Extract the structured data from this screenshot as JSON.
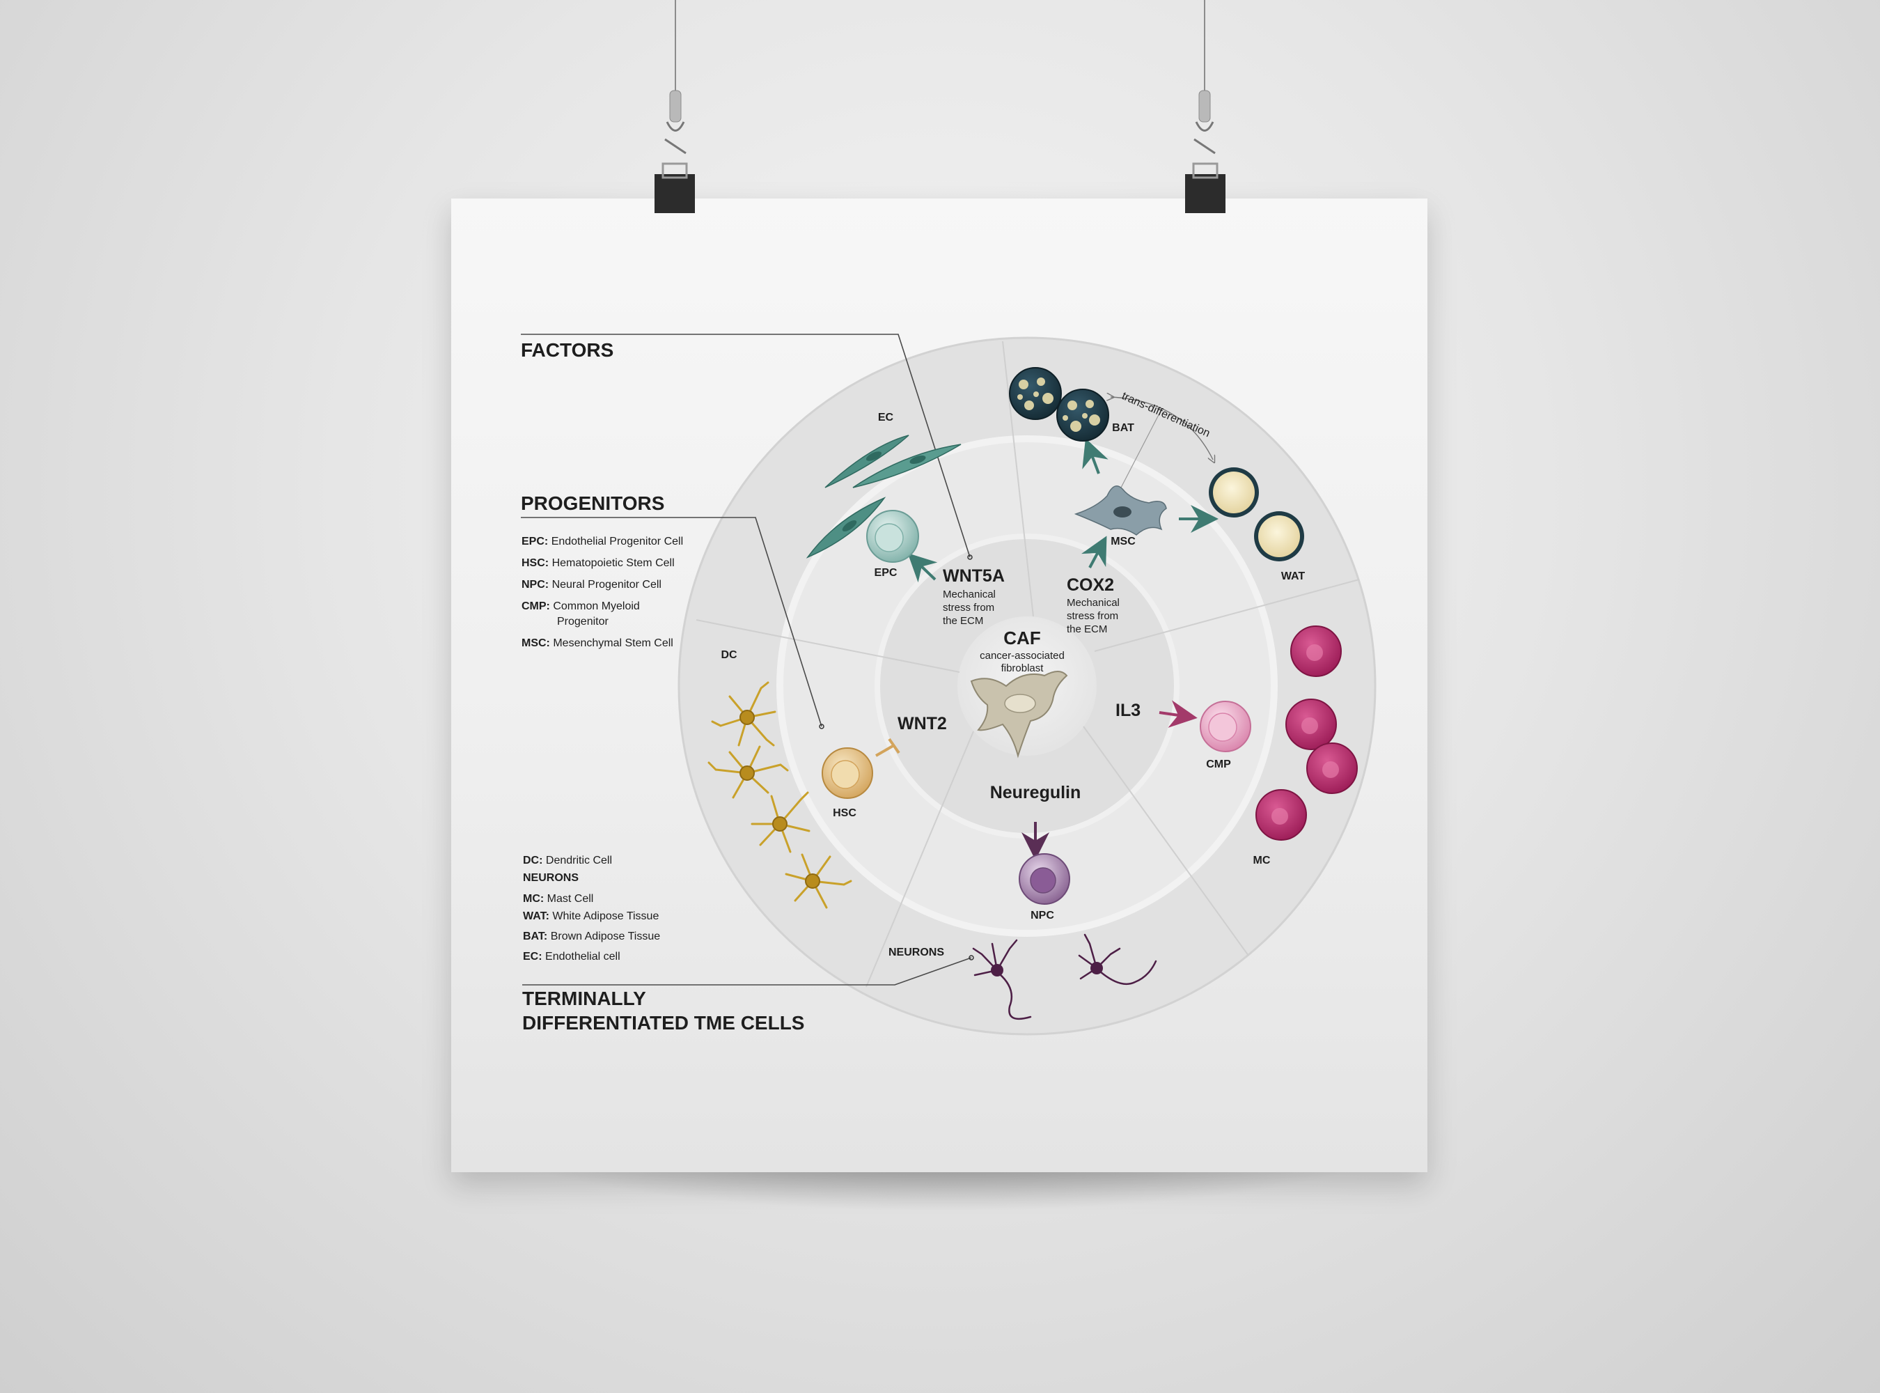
{
  "headings": {
    "factors": "FACTORS",
    "progenitors": "PROGENITORS",
    "terminal_line1": "TERMINALLY",
    "terminal_line2": "DIFFERENTIATED TME CELLS"
  },
  "progenitor_legend": [
    {
      "abbr": "EPC:",
      "text": "Endothelial Progenitor Cell"
    },
    {
      "abbr": "HSC:",
      "text": "Hematopoietic Stem Cell"
    },
    {
      "abbr": "NPC:",
      "text": "Neural Progenitor Cell"
    },
    {
      "abbr": "CMP:",
      "text": "Common Myeloid",
      "text2": "Progenitor"
    },
    {
      "abbr": "MSC:",
      "text": "Mesenchymal Stem Cell"
    }
  ],
  "terminal_legend": [
    {
      "abbr": "DC:",
      "text": "Dendritic Cell"
    },
    {
      "abbr": "NEURONS",
      "text": ""
    },
    {
      "abbr": "MC:",
      "text": "Mast Cell"
    },
    {
      "abbr": "WAT:",
      "text": "White Adipose Tissue"
    },
    {
      "abbr": "BAT:",
      "text": "Brown Adipose Tissue"
    },
    {
      "abbr": "EC:",
      "text": "Endothelial cell"
    }
  ],
  "center": {
    "title": "CAF",
    "subtitle_line1": "cancer-associated",
    "subtitle_line2": "fibroblast"
  },
  "factors": {
    "wnt5a": "WNT5A",
    "wnt5a_note": [
      "Mechanical",
      "stress from",
      "the ECM"
    ],
    "cox2": "COX2",
    "cox2_note": [
      "Mechanical",
      "stress from",
      "the ECM"
    ],
    "wnt2": "WNT2",
    "il3": "IL3",
    "neuregulin": "Neuregulin"
  },
  "cell_labels": {
    "ec": "EC",
    "epc": "EPC",
    "bat": "BAT",
    "msc": "MSC",
    "wat": "WAT",
    "dc": "DC",
    "hsc": "HSC",
    "cmp": "CMP",
    "mc": "MC",
    "npc": "NPC",
    "neurons": "NEURONS"
  },
  "trans_label": "trans-differentiation",
  "colors": {
    "ec": "#4e8f84",
    "epc": "#9fc6c0",
    "bat": "#1f3b45",
    "wat": "#efe6c0",
    "msc": "#7d929c",
    "dc": "#c9a12a",
    "hsc": "#e2bd7e",
    "cmp": "#e7a9c4",
    "mc": "#b5276a",
    "npc": "#9b77a6",
    "neuron": "#4d1f46",
    "arrow_green": "#3f7b72",
    "arrow_pink": "#a33a6a",
    "arrow_purple": "#5a2e55"
  }
}
